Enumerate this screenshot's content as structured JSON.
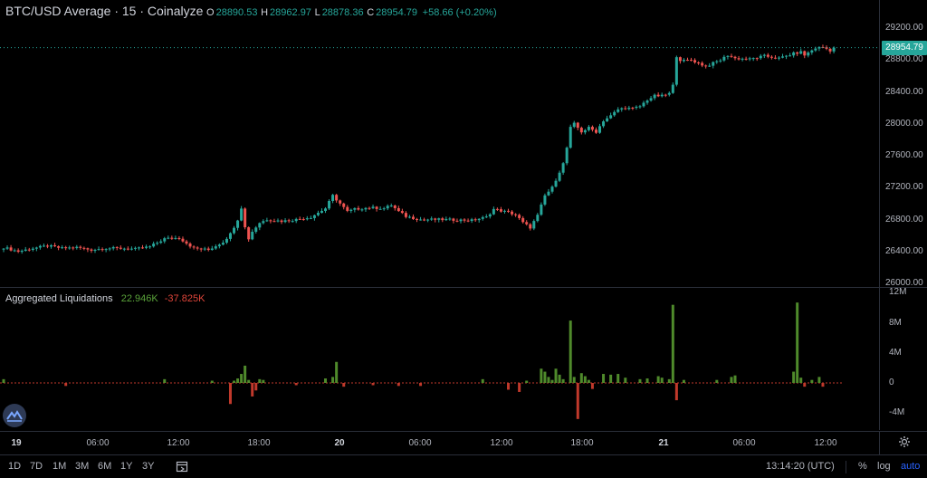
{
  "legend": {
    "title": "BTC/USD Average · 15 · Coinalyze",
    "o_key": "O",
    "o": "28890.53",
    "h_key": "H",
    "h": "28962.97",
    "l_key": "L",
    "l": "28878.36",
    "c_key": "C",
    "c": "28954.79",
    "change": "+58.66 (+0.20%)"
  },
  "liq_legend": {
    "title": "Aggregated Liquidations",
    "pos": "22.946K",
    "neg": "-37.825K"
  },
  "price_axis": {
    "ticks": [
      "29200.00",
      "28800.00",
      "28400.00",
      "28000.00",
      "27600.00",
      "27200.00",
      "26800.00",
      "26400.00",
      "26000.00"
    ],
    "tick_values": [
      29200,
      28800,
      28400,
      28000,
      27600,
      27200,
      26800,
      26400,
      26000
    ],
    "last_price": "28954.79"
  },
  "liq_axis": {
    "ticks": [
      "12M",
      "8M",
      "4M",
      "0",
      "-4M"
    ],
    "tick_values": [
      12,
      8,
      4,
      0,
      -4
    ]
  },
  "time_axis": [
    {
      "label": "19",
      "bold": true
    },
    {
      "label": "06:00",
      "bold": false
    },
    {
      "label": "12:00",
      "bold": false
    },
    {
      "label": "18:00",
      "bold": false
    },
    {
      "label": "20",
      "bold": true
    },
    {
      "label": "06:00",
      "bold": false
    },
    {
      "label": "12:00",
      "bold": false
    },
    {
      "label": "18:00",
      "bold": false
    },
    {
      "label": "21",
      "bold": true
    },
    {
      "label": "06:00",
      "bold": false
    },
    {
      "label": "12:00",
      "bold": false
    }
  ],
  "toolbar": {
    "ranges": [
      "1D",
      "7D",
      "1M",
      "3M",
      "6M",
      "1Y",
      "3Y"
    ],
    "time": "13:14:20 (UTC)",
    "percent": "%",
    "log": "log",
    "auto": "auto"
  },
  "colors": {
    "up": "#26a69a",
    "down": "#ef5350",
    "liq_long": "#4f8a2b",
    "liq_short": "#c0392b",
    "accent": "#2962ff"
  },
  "chart_data": {
    "type": "candlestick",
    "interval": "15m",
    "ylim": [
      26000,
      29250
    ],
    "price_path": [
      [
        0,
        26450
      ],
      [
        4,
        26400
      ],
      [
        8,
        26440
      ],
      [
        12,
        26470
      ],
      [
        16,
        26440
      ],
      [
        20,
        26450
      ],
      [
        24,
        26420
      ],
      [
        28,
        26440
      ],
      [
        32,
        26440
      ],
      [
        36,
        26430
      ],
      [
        40,
        26460
      ],
      [
        44,
        26560
      ],
      [
        48,
        26570
      ],
      [
        52,
        26440
      ],
      [
        56,
        26420
      ],
      [
        60,
        26520
      ],
      [
        62,
        26620
      ],
      [
        64,
        26800
      ],
      [
        65,
        26950
      ],
      [
        66,
        26700
      ],
      [
        67,
        26560
      ],
      [
        68,
        26650
      ],
      [
        70,
        26760
      ],
      [
        72,
        26800
      ],
      [
        76,
        26780
      ],
      [
        80,
        26800
      ],
      [
        84,
        26830
      ],
      [
        88,
        26940
      ],
      [
        90,
        27100
      ],
      [
        92,
        27000
      ],
      [
        94,
        26900
      ],
      [
        96,
        26930
      ],
      [
        100,
        26950
      ],
      [
        104,
        26940
      ],
      [
        106,
        26980
      ],
      [
        108,
        26900
      ],
      [
        110,
        26840
      ],
      [
        114,
        26800
      ],
      [
        120,
        26800
      ],
      [
        128,
        26790
      ],
      [
        132,
        26830
      ],
      [
        134,
        26930
      ],
      [
        138,
        26890
      ],
      [
        140,
        26860
      ],
      [
        142,
        26760
      ],
      [
        144,
        26700
      ],
      [
        146,
        26850
      ],
      [
        148,
        27100
      ],
      [
        150,
        27200
      ],
      [
        152,
        27400
      ],
      [
        153,
        27500
      ],
      [
        154,
        27700
      ],
      [
        155,
        27950
      ],
      [
        156,
        28000
      ],
      [
        157,
        27950
      ],
      [
        158,
        27900
      ],
      [
        160,
        27950
      ],
      [
        162,
        27900
      ],
      [
        164,
        28040
      ],
      [
        166,
        28100
      ],
      [
        168,
        28180
      ],
      [
        170,
        28200
      ],
      [
        172,
        28190
      ],
      [
        174,
        28220
      ],
      [
        176,
        28300
      ],
      [
        178,
        28350
      ],
      [
        180,
        28350
      ],
      [
        182,
        28380
      ],
      [
        183,
        28480
      ],
      [
        184,
        28850
      ],
      [
        185,
        28800
      ],
      [
        186,
        28790
      ],
      [
        188,
        28800
      ],
      [
        190,
        28760
      ],
      [
        192,
        28720
      ],
      [
        194,
        28760
      ],
      [
        196,
        28800
      ],
      [
        198,
        28860
      ],
      [
        200,
        28820
      ],
      [
        204,
        28810
      ],
      [
        208,
        28850
      ],
      [
        212,
        28820
      ],
      [
        216,
        28880
      ],
      [
        218,
        28900
      ],
      [
        219,
        28860
      ],
      [
        220,
        28890
      ],
      [
        222,
        28950
      ],
      [
        224,
        28960
      ],
      [
        226,
        28920
      ],
      [
        227,
        28955
      ]
    ],
    "liquidations_millions": [
      [
        0,
        0.5
      ],
      [
        17,
        -0.4
      ],
      [
        44,
        0.5
      ],
      [
        57,
        0.3
      ],
      [
        62,
        -2.8
      ],
      [
        63,
        0.3
      ],
      [
        64,
        0.6
      ],
      [
        65,
        1.2
      ],
      [
        66,
        2.3
      ],
      [
        67,
        0.4
      ],
      [
        68,
        -1.8
      ],
      [
        69,
        -1.0
      ],
      [
        70,
        0.5
      ],
      [
        71,
        0.4
      ],
      [
        80,
        -0.3
      ],
      [
        88,
        0.6
      ],
      [
        90,
        0.8
      ],
      [
        91,
        2.8
      ],
      [
        93,
        -0.5
      ],
      [
        101,
        -0.3
      ],
      [
        108,
        -0.4
      ],
      [
        114,
        -0.4
      ],
      [
        131,
        0.5
      ],
      [
        138,
        -0.9
      ],
      [
        141,
        -1.2
      ],
      [
        143,
        0.3
      ],
      [
        147,
        1.9
      ],
      [
        148,
        1.5
      ],
      [
        149,
        0.8
      ],
      [
        150,
        0.4
      ],
      [
        151,
        1.9
      ],
      [
        152,
        1.1
      ],
      [
        153,
        0.5
      ],
      [
        155,
        8.3
      ],
      [
        156,
        0.8
      ],
      [
        157,
        -4.8
      ],
      [
        158,
        1.3
      ],
      [
        159,
        0.9
      ],
      [
        160,
        0.4
      ],
      [
        161,
        -0.8
      ],
      [
        164,
        1.2
      ],
      [
        166,
        1.1
      ],
      [
        168,
        1.2
      ],
      [
        170,
        0.7
      ],
      [
        174,
        0.5
      ],
      [
        176,
        0.6
      ],
      [
        179,
        0.9
      ],
      [
        180,
        0.7
      ],
      [
        182,
        0.5
      ],
      [
        183,
        10.4
      ],
      [
        184,
        -2.3
      ],
      [
        186,
        0.4
      ],
      [
        195,
        0.4
      ],
      [
        199,
        0.8
      ],
      [
        200,
        1.0
      ],
      [
        216,
        1.5
      ],
      [
        217,
        10.7
      ],
      [
        218,
        0.7
      ],
      [
        219,
        -0.5
      ],
      [
        221,
        0.4
      ],
      [
        223,
        0.8
      ],
      [
        224,
        -0.5
      ]
    ]
  }
}
